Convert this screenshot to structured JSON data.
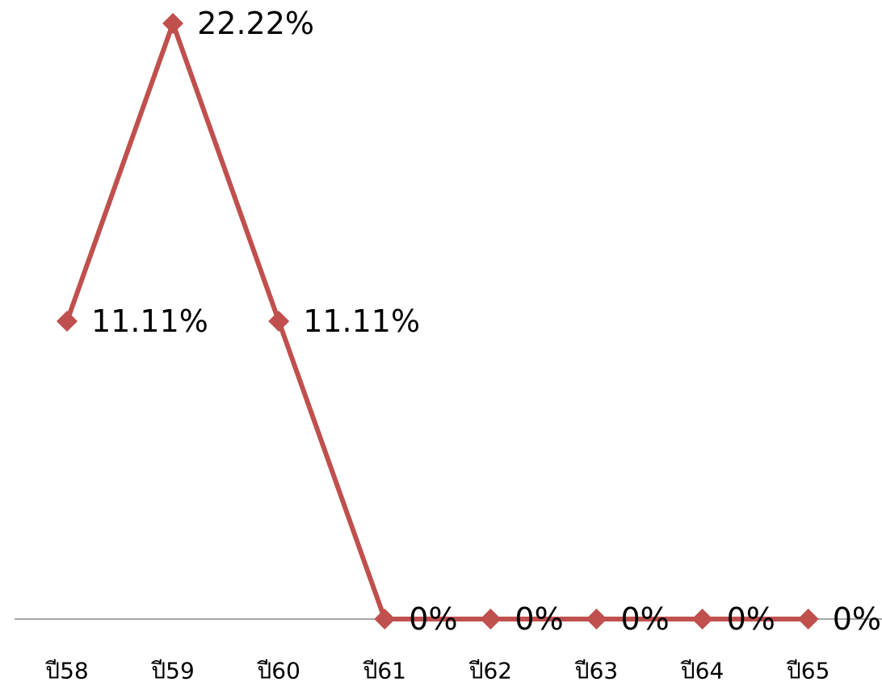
{
  "chart_data": {
    "type": "line",
    "categories": [
      "ปี58",
      "ปี59",
      "ปี60",
      "ปี61",
      "ปี62",
      "ปี63",
      "ปี64",
      "ปี65"
    ],
    "series": [
      {
        "values": [
          11.11,
          22.22,
          11.11,
          0,
          0,
          0,
          0,
          0
        ],
        "data_labels": [
          "11.11%",
          "22.22%",
          "11.11%",
          "0%",
          "0%",
          "0%",
          "0%",
          "0%"
        ],
        "color": "#c0504d"
      }
    ],
    "ylim": [
      0,
      22.22
    ],
    "grid": false,
    "legend": "none",
    "axis_color": "#a6a6a6",
    "marker": "diamond"
  }
}
